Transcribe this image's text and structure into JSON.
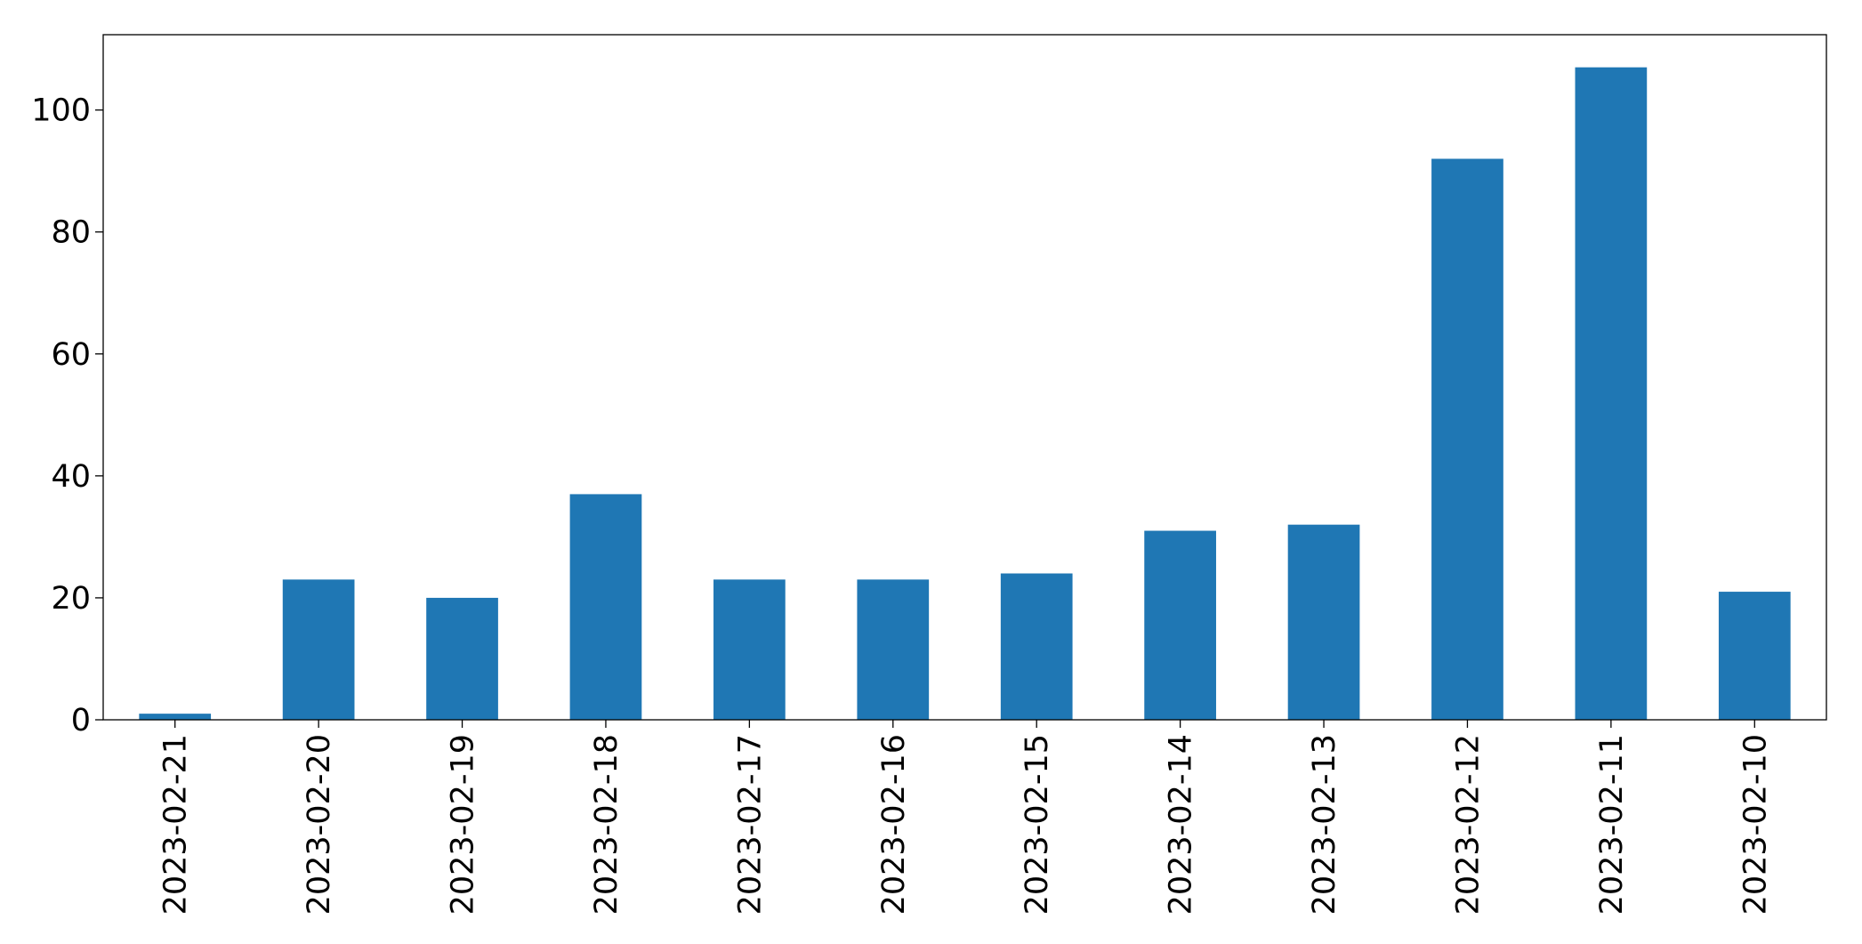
{
  "chart_data": {
    "type": "bar",
    "categories": [
      "2023-02-21",
      "2023-02-20",
      "2023-02-19",
      "2023-02-18",
      "2023-02-17",
      "2023-02-16",
      "2023-02-15",
      "2023-02-14",
      "2023-02-13",
      "2023-02-12",
      "2023-02-11",
      "2023-02-10"
    ],
    "values": [
      1,
      23,
      20,
      37,
      23,
      23,
      24,
      31,
      32,
      92,
      107,
      21
    ],
    "color": "#1f77b4",
    "ylim": [
      0,
      112.35
    ],
    "yticks": [
      0,
      20,
      40,
      60,
      80,
      100
    ],
    "grid": false
  }
}
